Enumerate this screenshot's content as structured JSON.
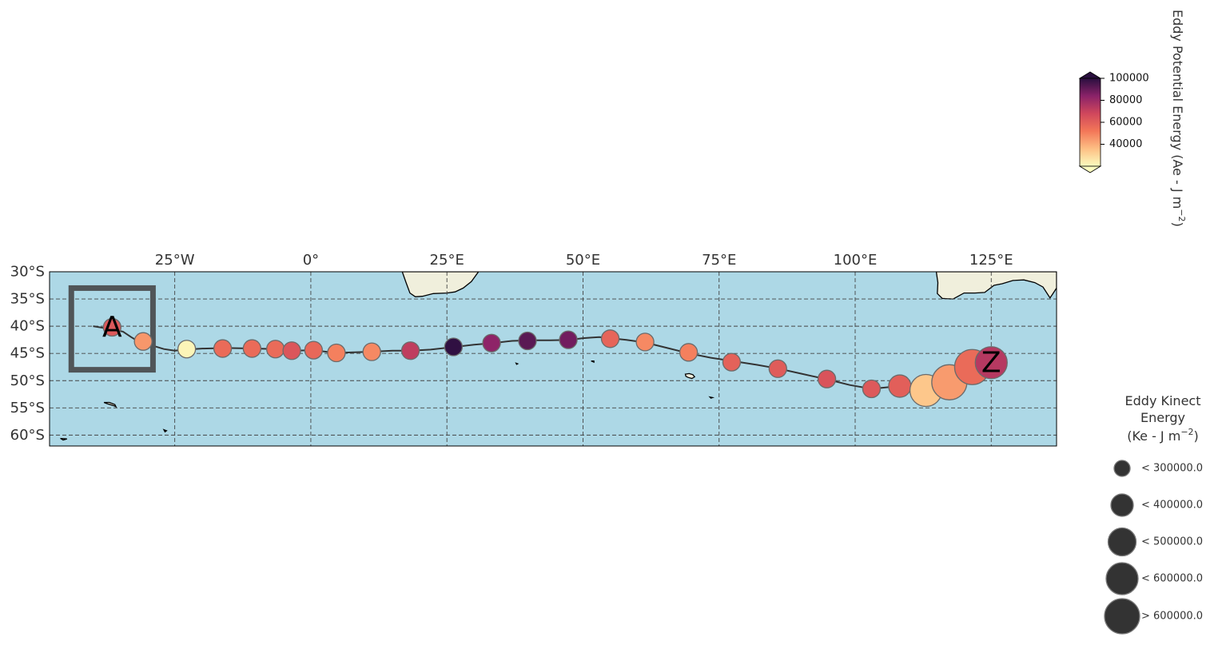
{
  "map": {
    "lon_range": [
      -48,
      137
    ],
    "lat_range": [
      -62,
      -30
    ],
    "ocean_color": "#add8e6",
    "land_color": "#f0efdc",
    "grid_lons": [
      -25,
      0,
      25,
      50,
      75,
      100,
      125
    ],
    "grid_lats": [
      -30,
      -35,
      -40,
      -45,
      -50,
      -55,
      -60
    ],
    "lon_tick_labels": [
      "25°W",
      "0°",
      "25°E",
      "50°E",
      "75°E",
      "100°E",
      "125°E"
    ],
    "lat_tick_labels": [
      "30°S",
      "35°S",
      "40°S",
      "45°S",
      "50°S",
      "55°S",
      "60°S"
    ]
  },
  "colorbar": {
    "label": "Eddy Potential Energy (Ae -  $J\\,m^{-2}$)",
    "label_text": "Eddy Potential Energy (Ae -  J m",
    "label_sup": "−2",
    "label_close": ")",
    "range": [
      20000,
      100000
    ],
    "tick_values": [
      100000,
      80000,
      60000,
      40000
    ],
    "tick_labels": [
      "100000",
      "80000",
      "60000",
      "40000"
    ]
  },
  "size_legend": {
    "title_line1": "Eddy Kinect",
    "title_line2": "Energy",
    "title_line3_pre": "(Ke -  J m",
    "title_line3_sup": "−2",
    "title_line3_post": ")",
    "entries": [
      {
        "label": "< 300000.0",
        "ke": 300000
      },
      {
        "label": "< 400000.0",
        "ke": 400000
      },
      {
        "label": "< 500000.0",
        "ke": 500000
      },
      {
        "label": "< 600000.0",
        "ke": 600000
      },
      {
        "label": "> 600000.0",
        "ke": 700000
      }
    ]
  },
  "start_box": {
    "lon_min": -44,
    "lon_max": -29,
    "lat_min": -48,
    "lat_max": -33
  },
  "start_label": "A",
  "end_label": "Z",
  "start_point": {
    "lon": -36.5,
    "lat": -40.2
  },
  "end_point": {
    "lon": 125,
    "lat": -46.7
  },
  "track": [
    [
      -40,
      -40
    ],
    [
      -37,
      -40.5
    ],
    [
      -34.5,
      -41
    ],
    [
      -33,
      -42
    ],
    [
      -31,
      -43.2
    ],
    [
      -29,
      -43.6
    ],
    [
      -27,
      -44.2
    ],
    [
      -25,
      -44.5
    ],
    [
      -23,
      -44.3
    ],
    [
      -20,
      -44.1
    ],
    [
      -15.5,
      -44
    ],
    [
      -10,
      -44.1
    ],
    [
      -6.5,
      -44.2
    ],
    [
      -3,
      -44.5
    ],
    [
      0.5,
      -44.4
    ],
    [
      4.5,
      -44.9
    ],
    [
      8,
      -44.8
    ],
    [
      11,
      -44.7
    ],
    [
      15,
      -44.5
    ],
    [
      18.5,
      -44.5
    ],
    [
      22,
      -44.3
    ],
    [
      26.5,
      -43.8
    ],
    [
      30,
      -43.4
    ],
    [
      33.5,
      -43.1
    ],
    [
      37,
      -42.7
    ],
    [
      40.5,
      -42.6
    ],
    [
      44,
      -42.6
    ],
    [
      47.5,
      -42.5
    ],
    [
      50,
      -42.2
    ],
    [
      51.5,
      -42.1
    ],
    [
      53,
      -42
    ],
    [
      55,
      -42.2
    ],
    [
      58,
      -42.5
    ],
    [
      61.5,
      -43
    ],
    [
      65.5,
      -44
    ],
    [
      69.5,
      -45
    ],
    [
      73.5,
      -45.8
    ],
    [
      77.5,
      -46.4
    ],
    [
      82,
      -47.1
    ],
    [
      86,
      -47.8
    ],
    [
      90,
      -48.7
    ],
    [
      95,
      -49.8
    ],
    [
      99,
      -50.8
    ],
    [
      103,
      -51.5
    ],
    [
      108,
      -51
    ],
    [
      110.5,
      -51.1
    ],
    [
      113,
      -51.3
    ],
    [
      117.5,
      -50.6
    ],
    [
      121.5,
      -48.9
    ],
    [
      125,
      -46.7
    ]
  ],
  "eddies": [
    {
      "lon": -36.5,
      "lat": -40.2,
      "ae": 62000,
      "ke": 200000
    },
    {
      "lon": -30.8,
      "lat": -42.8,
      "ae": 45000,
      "ke": 250000
    },
    {
      "lon": -22.8,
      "lat": -44.2,
      "ae": 22000,
      "ke": 260000
    },
    {
      "lon": -16.2,
      "lat": -44.1,
      "ae": 56000,
      "ke": 250000
    },
    {
      "lon": -10.8,
      "lat": -44.1,
      "ae": 56000,
      "ke": 250000
    },
    {
      "lon": -6.5,
      "lat": -44.2,
      "ae": 56000,
      "ke": 250000
    },
    {
      "lon": -3.5,
      "lat": -44.5,
      "ae": 63000,
      "ke": 250000
    },
    {
      "lon": 0.5,
      "lat": -44.4,
      "ae": 57000,
      "ke": 250000
    },
    {
      "lon": 4.7,
      "lat": -44.9,
      "ae": 50000,
      "ke": 250000
    },
    {
      "lon": 11.2,
      "lat": -44.7,
      "ae": 48000,
      "ke": 250000
    },
    {
      "lon": 18.3,
      "lat": -44.5,
      "ae": 72000,
      "ke": 250000
    },
    {
      "lon": 26.2,
      "lat": -43.8,
      "ae": 99000,
      "ke": 250000
    },
    {
      "lon": 33.2,
      "lat": -43.1,
      "ae": 83000,
      "ke": 250000
    },
    {
      "lon": 39.8,
      "lat": -42.7,
      "ae": 92000,
      "ke": 250000
    },
    {
      "lon": 47.3,
      "lat": -42.5,
      "ae": 88000,
      "ke": 250000
    },
    {
      "lon": 55,
      "lat": -42.3,
      "ae": 58000,
      "ke": 250000
    },
    {
      "lon": 61.4,
      "lat": -42.9,
      "ae": 48000,
      "ke": 250000
    },
    {
      "lon": 69.4,
      "lat": -44.8,
      "ae": 50000,
      "ke": 250000
    },
    {
      "lon": 77.3,
      "lat": -46.6,
      "ae": 59000,
      "ke": 250000
    },
    {
      "lon": 85.8,
      "lat": -47.8,
      "ae": 61000,
      "ke": 250000
    },
    {
      "lon": 94.8,
      "lat": -49.7,
      "ae": 64000,
      "ke": 260000
    },
    {
      "lon": 103,
      "lat": -51.5,
      "ae": 62000,
      "ke": 270000
    },
    {
      "lon": 108.2,
      "lat": -51,
      "ae": 60000,
      "ke": 380000
    },
    {
      "lon": 113,
      "lat": -51.8,
      "ae": 34000,
      "ke": 520000
    },
    {
      "lon": 117.3,
      "lat": -50.3,
      "ae": 44000,
      "ke": 650000
    },
    {
      "lon": 121.5,
      "lat": -47.5,
      "ae": 56000,
      "ke": 650000
    },
    {
      "lon": 125,
      "lat": -46.7,
      "ae": 74000,
      "ke": 580000
    }
  ],
  "land": [
    {
      "name": "southern-africa",
      "coords": [
        [
          16.8,
          -30
        ],
        [
          17.5,
          -32
        ],
        [
          18.2,
          -33.9
        ],
        [
          19.2,
          -34.6
        ],
        [
          20.5,
          -34.5
        ],
        [
          22.5,
          -34
        ],
        [
          25,
          -33.9
        ],
        [
          26.5,
          -33.7
        ],
        [
          28,
          -33
        ],
        [
          29.5,
          -31.8
        ],
        [
          30.8,
          -30
        ],
        [
          16.8,
          -30
        ]
      ]
    },
    {
      "name": "australia-southwest",
      "coords": [
        [
          114.9,
          -30
        ],
        [
          115.2,
          -32
        ],
        [
          115.1,
          -34
        ],
        [
          116,
          -34.9
        ],
        [
          118,
          -35
        ],
        [
          120,
          -33.9
        ],
        [
          122,
          -33.9
        ],
        [
          123.8,
          -33.8
        ],
        [
          125.5,
          -32.5
        ],
        [
          127,
          -32.2
        ],
        [
          129,
          -31.6
        ],
        [
          131,
          -31.5
        ],
        [
          133,
          -32
        ],
        [
          134.5,
          -32.8
        ],
        [
          135.8,
          -34.8
        ],
        [
          136.2,
          -34.2
        ],
        [
          137,
          -33
        ],
        [
          137,
          -30
        ],
        [
          114.9,
          -30
        ]
      ]
    },
    {
      "name": "south-georgia",
      "coords": [
        [
          -38,
          -54
        ],
        [
          -37,
          -54
        ],
        [
          -36,
          -54.4
        ],
        [
          -35.8,
          -54.8
        ],
        [
          -36.2,
          -54.6
        ],
        [
          -37.5,
          -54.2
        ],
        [
          -38,
          -54
        ]
      ]
    },
    {
      "name": "kerguelen",
      "coords": [
        [
          68.8,
          -48.8
        ],
        [
          69.5,
          -48.7
        ],
        [
          70.2,
          -48.9
        ],
        [
          70.5,
          -49.3
        ],
        [
          70,
          -49.6
        ],
        [
          69.3,
          -49.4
        ],
        [
          68.9,
          -49.2
        ],
        [
          68.8,
          -48.8
        ]
      ]
    },
    {
      "name": "south-sandwich",
      "coords": [
        [
          -27,
          -59
        ],
        [
          -26.5,
          -59.2
        ],
        [
          -26.8,
          -59.4
        ],
        [
          -27,
          -59
        ]
      ]
    },
    {
      "name": "antarctic-peninsula-tip",
      "coords": [
        [
          -46,
          -60.6
        ],
        [
          -44.8,
          -60.7
        ],
        [
          -45.5,
          -60.9
        ],
        [
          -46,
          -60.6
        ]
      ]
    },
    {
      "name": "crozet",
      "coords": [
        [
          51.5,
          -46.4
        ],
        [
          52,
          -46.4
        ],
        [
          52,
          -46.6
        ],
        [
          51.5,
          -46.4
        ]
      ]
    },
    {
      "name": "heard",
      "coords": [
        [
          73.3,
          -53
        ],
        [
          73.8,
          -53.1
        ],
        [
          73.5,
          -53.2
        ],
        [
          73.3,
          -53
        ]
      ]
    },
    {
      "name": "prince-edward",
      "coords": [
        [
          37.7,
          -46.8
        ],
        [
          38,
          -46.9
        ],
        [
          37.8,
          -47
        ],
        [
          37.7,
          -46.8
        ]
      ]
    }
  ]
}
